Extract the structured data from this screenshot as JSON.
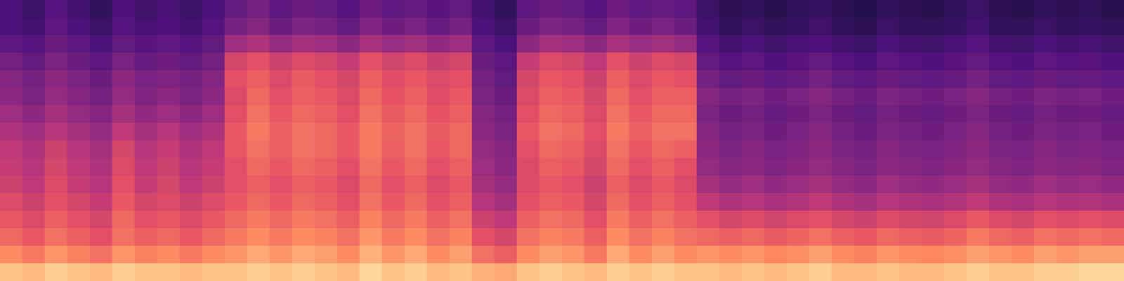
{
  "chart_data": {
    "type": "heatmap",
    "tick_labels": false,
    "grid": false,
    "zlim": [
      0,
      100
    ],
    "values": [
      [
        24,
        20,
        26,
        22,
        18,
        25,
        21,
        23,
        20,
        24,
        30,
        34,
        28,
        32,
        30,
        26,
        33,
        29,
        31,
        27,
        30,
        22,
        18,
        28,
        32,
        30,
        26,
        33,
        29,
        31,
        28,
        20,
        16,
        18,
        15,
        17,
        19,
        16,
        14,
        18,
        16,
        15,
        17,
        20,
        16,
        15,
        18,
        16,
        17,
        15
      ],
      [
        24,
        22,
        28,
        24,
        20,
        26,
        23,
        25,
        22,
        26,
        34,
        38,
        32,
        36,
        34,
        30,
        37,
        33,
        35,
        31,
        34,
        24,
        20,
        32,
        36,
        34,
        30,
        37,
        33,
        35,
        32,
        22,
        18,
        20,
        17,
        19,
        21,
        18,
        16,
        20,
        18,
        17,
        19,
        22,
        18,
        17,
        20,
        18,
        19,
        17
      ],
      [
        28,
        26,
        32,
        28,
        24,
        30,
        27,
        29,
        26,
        30,
        44,
        48,
        42,
        46,
        44,
        40,
        47,
        43,
        45,
        41,
        44,
        28,
        24,
        40,
        46,
        44,
        40,
        47,
        43,
        45,
        42,
        26,
        22,
        24,
        21,
        23,
        25,
        22,
        20,
        24,
        22,
        21,
        23,
        26,
        22,
        21,
        24,
        22,
        23,
        21
      ],
      [
        34,
        30,
        36,
        32,
        28,
        35,
        31,
        33,
        30,
        34,
        58,
        62,
        56,
        60,
        58,
        54,
        62,
        57,
        60,
        55,
        58,
        32,
        28,
        54,
        60,
        58,
        52,
        62,
        56,
        60,
        58,
        30,
        26,
        28,
        25,
        27,
        30,
        26,
        24,
        28,
        26,
        25,
        27,
        30,
        26,
        25,
        28,
        26,
        27,
        25
      ],
      [
        38,
        34,
        40,
        36,
        32,
        40,
        35,
        37,
        34,
        38,
        62,
        66,
        60,
        65,
        62,
        58,
        66,
        61,
        64,
        59,
        62,
        34,
        30,
        58,
        64,
        62,
        56,
        66,
        60,
        64,
        62,
        34,
        30,
        32,
        29,
        31,
        34,
        30,
        28,
        32,
        30,
        29,
        31,
        34,
        30,
        29,
        32,
        30,
        31,
        29
      ],
      [
        40,
        36,
        42,
        38,
        34,
        42,
        37,
        40,
        36,
        40,
        60,
        68,
        62,
        66,
        64,
        60,
        68,
        63,
        66,
        61,
        64,
        36,
        32,
        60,
        66,
        64,
        58,
        68,
        62,
        66,
        66,
        38,
        34,
        36,
        33,
        35,
        38,
        34,
        32,
        36,
        34,
        33,
        35,
        38,
        34,
        33,
        36,
        34,
        35,
        33
      ],
      [
        44,
        40,
        46,
        42,
        38,
        46,
        41,
        44,
        40,
        44,
        62,
        70,
        64,
        68,
        66,
        62,
        70,
        65,
        68,
        63,
        66,
        38,
        34,
        62,
        68,
        66,
        60,
        70,
        64,
        68,
        68,
        36,
        32,
        34,
        31,
        33,
        36,
        32,
        30,
        34,
        32,
        31,
        33,
        36,
        32,
        31,
        34,
        32,
        33,
        31
      ],
      [
        48,
        44,
        50,
        46,
        42,
        52,
        46,
        50,
        44,
        48,
        64,
        72,
        66,
        70,
        68,
        64,
        72,
        67,
        70,
        65,
        68,
        40,
        36,
        64,
        70,
        68,
        62,
        72,
        66,
        70,
        70,
        38,
        34,
        36,
        33,
        35,
        38,
        34,
        32,
        36,
        34,
        33,
        35,
        38,
        34,
        33,
        36,
        34,
        35,
        33
      ],
      [
        52,
        48,
        56,
        50,
        46,
        58,
        50,
        54,
        48,
        52,
        64,
        70,
        66,
        70,
        68,
        64,
        72,
        66,
        70,
        64,
        68,
        42,
        38,
        62,
        68,
        66,
        60,
        70,
        64,
        68,
        66,
        40,
        36,
        38,
        35,
        37,
        40,
        36,
        34,
        38,
        36,
        35,
        37,
        40,
        36,
        35,
        38,
        36,
        37,
        35
      ],
      [
        54,
        50,
        58,
        52,
        48,
        60,
        52,
        56,
        50,
        54,
        62,
        68,
        64,
        68,
        66,
        62,
        70,
        64,
        68,
        62,
        66,
        44,
        40,
        60,
        66,
        64,
        58,
        68,
        62,
        66,
        62,
        42,
        38,
        40,
        37,
        39,
        42,
        38,
        36,
        40,
        38,
        37,
        39,
        42,
        38,
        37,
        40,
        38,
        39,
        37
      ],
      [
        56,
        52,
        60,
        54,
        50,
        62,
        54,
        58,
        52,
        56,
        62,
        66,
        62,
        66,
        64,
        60,
        68,
        62,
        66,
        60,
        64,
        46,
        42,
        60,
        64,
        62,
        56,
        66,
        60,
        64,
        60,
        46,
        42,
        44,
        41,
        43,
        46,
        42,
        40,
        44,
        42,
        41,
        43,
        46,
        42,
        41,
        44,
        42,
        43,
        41
      ],
      [
        60,
        56,
        62,
        58,
        54,
        64,
        58,
        60,
        56,
        60,
        64,
        68,
        64,
        68,
        66,
        62,
        70,
        64,
        68,
        62,
        66,
        50,
        46,
        62,
        66,
        64,
        58,
        68,
        62,
        66,
        62,
        52,
        48,
        50,
        47,
        49,
        52,
        48,
        46,
        50,
        48,
        47,
        49,
        52,
        48,
        47,
        50,
        48,
        49,
        47
      ],
      [
        64,
        60,
        66,
        62,
        58,
        68,
        62,
        64,
        60,
        64,
        68,
        72,
        68,
        72,
        70,
        66,
        74,
        68,
        72,
        66,
        70,
        56,
        52,
        66,
        70,
        68,
        62,
        72,
        66,
        70,
        66,
        62,
        58,
        60,
        57,
        59,
        62,
        58,
        56,
        60,
        58,
        57,
        59,
        64,
        60,
        58,
        62,
        60,
        62,
        60
      ],
      [
        68,
        64,
        70,
        66,
        62,
        70,
        66,
        68,
        64,
        68,
        72,
        76,
        72,
        76,
        74,
        70,
        78,
        72,
        76,
        70,
        74,
        62,
        58,
        70,
        74,
        72,
        66,
        76,
        70,
        74,
        70,
        68,
        66,
        68,
        65,
        67,
        70,
        66,
        64,
        68,
        66,
        65,
        67,
        72,
        68,
        66,
        70,
        68,
        70,
        68
      ],
      [
        76,
        72,
        78,
        74,
        70,
        78,
        74,
        76,
        72,
        76,
        78,
        82,
        78,
        82,
        80,
        76,
        84,
        78,
        82,
        76,
        80,
        70,
        66,
        76,
        80,
        78,
        72,
        82,
        76,
        80,
        76,
        78,
        76,
        78,
        75,
        77,
        80,
        76,
        74,
        78,
        76,
        75,
        77,
        80,
        78,
        76,
        80,
        78,
        80,
        80
      ],
      [
        88,
        86,
        90,
        88,
        86,
        90,
        88,
        88,
        86,
        88,
        88,
        90,
        88,
        90,
        88,
        86,
        92,
        88,
        90,
        86,
        88,
        84,
        82,
        88,
        90,
        88,
        86,
        90,
        88,
        90,
        88,
        88,
        86,
        88,
        86,
        88,
        90,
        86,
        86,
        88,
        86,
        86,
        88,
        90,
        88,
        88,
        90,
        90,
        92,
        92
      ]
    ]
  }
}
